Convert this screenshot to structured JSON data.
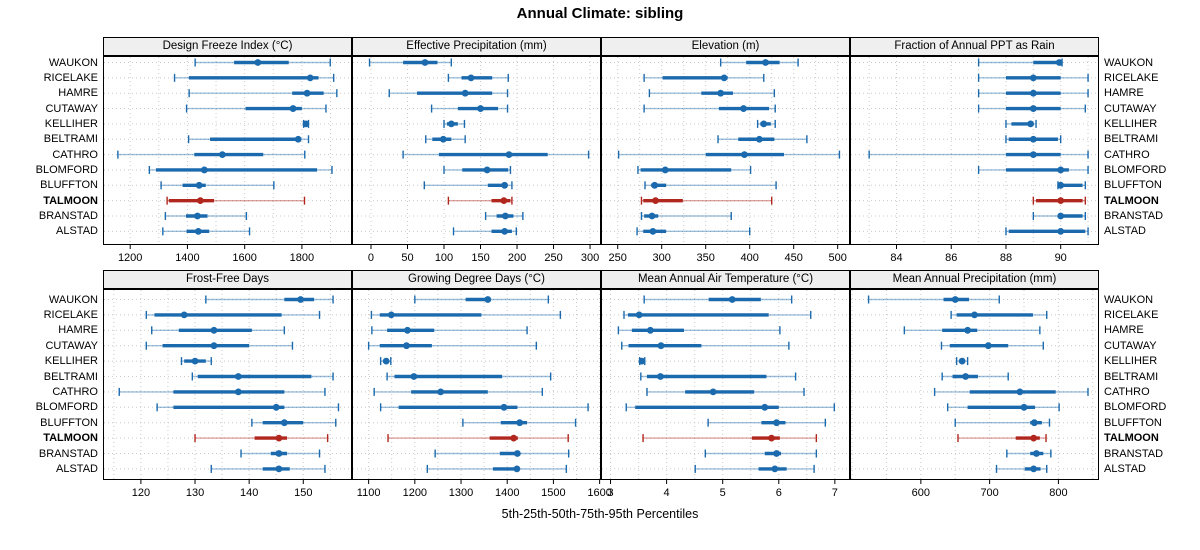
{
  "title": "Annual Climate: sibling",
  "caption": "5th-25th-50th-75th-95th Percentiles",
  "stations": [
    "WAUKON",
    "RICELAKE",
    "HAMRE",
    "CUTAWAY",
    "KELLIHER",
    "BELTRAMI",
    "CATHRO",
    "BLOMFORD",
    "BLUFFTON",
    "TALMOON",
    "BRANSTAD",
    "ALSTAD"
  ],
  "highlight_station": "TALMOON",
  "percentile_labels": [
    "5th",
    "25th",
    "50th",
    "75th",
    "95th"
  ],
  "colors": {
    "series_main": "#1b6aae",
    "series_light": "rgba(27,106,174,0.42)",
    "highlight_main": "#b1261d",
    "highlight_light": "rgba(177,38,29,0.42)",
    "strip_bg": "#efefef",
    "grid": "#c9c9c9",
    "border": "#000000"
  },
  "chart_data": {
    "type": "dotplot",
    "layout": "2 rows x 4 columns lattice, shared station y-axis, TALMOON highlighted",
    "legend": "each row shows 5th-25th-50th-75th-95th percentile whisker (thin 5-95 with end caps, thick 25-75, dot = median)",
    "panels": [
      {
        "title": "Design Freeze Index (°C)",
        "xlim": [
          1105,
          1975
        ],
        "ticks": [
          1200,
          1400,
          1600,
          1800
        ],
        "grid_step": 100,
        "values": {
          "WAUKON": [
            1427,
            1563,
            1646,
            1754,
            1899
          ],
          "RICELAKE": [
            1355,
            1405,
            1829,
            1858,
            1911
          ],
          "HAMRE": [
            1406,
            1766,
            1818,
            1876,
            1922
          ],
          "CUTAWAY": [
            1397,
            1603,
            1769,
            1800,
            1884
          ],
          "KELLIHER": [
            1806,
            1810,
            1814,
            1818,
            1823
          ],
          "BELTRAMI": [
            1404,
            1479,
            1787,
            1792,
            1823
          ],
          "CATHRO": [
            1157,
            1424,
            1522,
            1665,
            1810
          ],
          "BLOMFORD": [
            1267,
            1290,
            1459,
            1853,
            1905
          ],
          "BLUFFTON": [
            1308,
            1383,
            1441,
            1464,
            1702
          ],
          "TALMOON": [
            1329,
            1335,
            1445,
            1493,
            1809
          ],
          "BRANSTAD": [
            1323,
            1395,
            1435,
            1470,
            1606
          ],
          "ALSTAD": [
            1314,
            1397,
            1438,
            1476,
            1617
          ]
        }
      },
      {
        "title": "Effective Precipitation (mm)",
        "xlim": [
          -26,
          315
        ],
        "ticks": [
          0,
          50,
          100,
          150,
          200,
          250,
          300
        ],
        "grid_step": 50,
        "values": {
          "WAUKON": [
            -2,
            44,
            74,
            91,
            110
          ],
          "RICELAKE": [
            106,
            124,
            137,
            166,
            188
          ],
          "HAMRE": [
            25,
            63,
            129,
            166,
            187
          ],
          "CUTAWAY": [
            83,
            119,
            150,
            174,
            187
          ],
          "KELLIHER": [
            100,
            104,
            110,
            119,
            128
          ],
          "BELTRAMI": [
            75,
            84,
            99,
            110,
            129
          ],
          "CATHRO": [
            44,
            93,
            189,
            242,
            298
          ],
          "BLOMFORD": [
            100,
            125,
            159,
            188,
            191
          ],
          "BLUFFTON": [
            73,
            160,
            183,
            187,
            193
          ],
          "TALMOON": [
            106,
            165,
            182,
            191,
            193
          ],
          "BRANSTAD": [
            157,
            172,
            184,
            195,
            208
          ],
          "ALSTAD": [
            113,
            165,
            183,
            193,
            199
          ]
        }
      },
      {
        "title": "Elevation (m)",
        "xlim": [
          231,
          514
        ],
        "ticks": [
          250,
          300,
          350,
          400,
          450,
          500
        ],
        "grid_step": 25,
        "values": {
          "WAUKON": [
            367,
            396,
            418,
            434,
            455
          ],
          "RICELAKE": [
            280,
            301,
            371,
            375,
            416
          ],
          "HAMRE": [
            286,
            345,
            367,
            381,
            428
          ],
          "CUTAWAY": [
            280,
            365,
            393,
            422,
            429
          ],
          "KELLIHER": [
            409,
            412,
            416,
            424,
            429
          ],
          "BELTRAMI": [
            364,
            387,
            411,
            428,
            465
          ],
          "CATHRO": [
            251,
            350,
            394,
            439,
            502
          ],
          "BLOMFORD": [
            273,
            276,
            304,
            379,
            401
          ],
          "BLUFFTON": [
            281,
            288,
            292,
            305,
            430
          ],
          "TALMOON": [
            277,
            279,
            293,
            324,
            425
          ],
          "BRANSTAD": [
            277,
            280,
            289,
            296,
            379
          ],
          "ALSTAD": [
            272,
            279,
            290,
            305,
            400
          ]
        }
      },
      {
        "title": "Fraction of Annual PPT as Rain",
        "xlim": [
          82.3,
          91.4
        ],
        "ticks": [
          84,
          86,
          88,
          90
        ],
        "grid_step": 1,
        "values": {
          "WAUKON": [
            87,
            89,
            89.95,
            90,
            90.05
          ],
          "RICELAKE": [
            87,
            88,
            89,
            90,
            91
          ],
          "HAMRE": [
            87,
            88,
            89,
            90,
            91
          ],
          "CUTAWAY": [
            87,
            88,
            89,
            90,
            90.9
          ],
          "KELLIHER": [
            88,
            88.2,
            88.9,
            89,
            89.1
          ],
          "BELTRAMI": [
            88,
            88.1,
            89,
            89.9,
            90
          ],
          "CATHRO": [
            83,
            88,
            89,
            90,
            91
          ],
          "BLOMFORD": [
            87,
            88,
            90,
            90.3,
            91
          ],
          "BLUFFTON": [
            89.9,
            89.95,
            90,
            90.8,
            90.9
          ],
          "TALMOON": [
            89,
            89.1,
            90,
            90.8,
            90.9
          ],
          "BRANSTAD": [
            89,
            89.9,
            90,
            90.8,
            90.9
          ],
          "ALSTAD": [
            88,
            88.1,
            90,
            90.9,
            91
          ]
        }
      },
      {
        "title": "Frost-Free Days",
        "xlim": [
          113,
          159
        ],
        "ticks": [
          120,
          130,
          140,
          150
        ],
        "grid_step": 5,
        "values": {
          "WAUKON": [
            132,
            146.5,
            149.5,
            152,
            155.5
          ],
          "RICELAKE": [
            121,
            122.5,
            128,
            146,
            153
          ],
          "HAMRE": [
            122,
            127,
            133.5,
            140.5,
            146.5
          ],
          "CUTAWAY": [
            121,
            124,
            133.5,
            140,
            148
          ],
          "KELLIHER": [
            127.5,
            128,
            130,
            132,
            133
          ],
          "BELTRAMI": [
            129.5,
            130.5,
            138,
            151.5,
            155.5
          ],
          "CATHRO": [
            116,
            126,
            138,
            146.5,
            154
          ],
          "BLOMFORD": [
            123,
            126,
            145,
            146.5,
            156.5
          ],
          "BLUFFTON": [
            140.5,
            142.5,
            146.5,
            150,
            156
          ],
          "TALMOON": [
            130,
            141,
            145.5,
            147,
            154.5
          ],
          "BRANSTAD": [
            138.5,
            144,
            145.5,
            147,
            153
          ],
          "ALSTAD": [
            133,
            142.5,
            145.5,
            147.5,
            154
          ]
        }
      },
      {
        "title": "Growing Degree Days (°C)",
        "xlim": [
          1064,
          1603
        ],
        "ticks": [
          1100,
          1200,
          1300,
          1400,
          1500,
          1600
        ],
        "grid_step": 50,
        "values": {
          "WAUKON": [
            1200,
            1310,
            1358,
            1363,
            1489
          ],
          "RICELAKE": [
            1106,
            1124,
            1149,
            1344,
            1515
          ],
          "HAMRE": [
            1107,
            1140,
            1184,
            1242,
            1443
          ],
          "CUTAWAY": [
            1100,
            1124,
            1182,
            1237,
            1463
          ],
          "KELLIHER": [
            1126,
            1132,
            1138,
            1144,
            1148
          ],
          "BELTRAMI": [
            1140,
            1156,
            1198,
            1389,
            1494
          ],
          "CATHRO": [
            1112,
            1192,
            1256,
            1358,
            1476
          ],
          "BLOMFORD": [
            1126,
            1165,
            1393,
            1422,
            1575
          ],
          "BLUFFTON": [
            1304,
            1386,
            1427,
            1443,
            1548
          ],
          "TALMOON": [
            1142,
            1362,
            1414,
            1423,
            1532
          ],
          "BRANSTAD": [
            1244,
            1384,
            1422,
            1427,
            1533
          ],
          "ALSTAD": [
            1227,
            1369,
            1421,
            1425,
            1528
          ]
        }
      },
      {
        "title": "Mean Annual Air Temperature (°C)",
        "xlim": [
          2.83,
          7.27
        ],
        "ticks": [
          3,
          4,
          5,
          6,
          7
        ],
        "grid_step": 0.5,
        "values": {
          "WAUKON": [
            3.6,
            4.75,
            5.17,
            5.68,
            6.23
          ],
          "RICELAKE": [
            3.24,
            3.31,
            3.51,
            5.82,
            6.57
          ],
          "HAMRE": [
            3.14,
            3.38,
            3.71,
            4.31,
            6.02
          ],
          "CUTAWAY": [
            3.2,
            3.32,
            3.9,
            4.62,
            6.18
          ],
          "KELLIHER": [
            3.52,
            3.54,
            3.56,
            3.59,
            3.61
          ],
          "BELTRAMI": [
            3.54,
            3.65,
            3.89,
            5.78,
            6.3
          ],
          "CATHRO": [
            3.65,
            4.33,
            4.83,
            5.56,
            6.45
          ],
          "BLOMFORD": [
            3.28,
            3.44,
            5.75,
            6.0,
            6.99
          ],
          "BLUFFTON": [
            4.74,
            5.69,
            5.96,
            6.12,
            6.83
          ],
          "TALMOON": [
            3.58,
            5.52,
            5.87,
            6.02,
            6.67
          ],
          "BRANSTAD": [
            4.69,
            5.75,
            5.96,
            6.04,
            6.67
          ],
          "ALSTAD": [
            4.51,
            5.64,
            5.93,
            6.14,
            6.63
          ]
        }
      },
      {
        "title": "Mean Annual Precipitation (mm)",
        "xlim": [
          497,
          859
        ],
        "ticks": [
          600,
          700,
          800
        ],
        "grid_step": 50,
        "values": {
          "WAUKON": [
            524,
            633,
            650,
            670,
            714
          ],
          "RICELAKE": [
            644,
            652,
            678,
            763,
            783
          ],
          "HAMRE": [
            576,
            631,
            668,
            682,
            773
          ],
          "CUTAWAY": [
            630,
            642,
            698,
            727,
            778
          ],
          "KELLIHER": [
            652,
            656,
            660,
            664,
            668
          ],
          "BELTRAMI": [
            631,
            646,
            665,
            683,
            727
          ],
          "CATHRO": [
            620,
            671,
            744,
            796,
            843
          ],
          "BLOMFORD": [
            639,
            668,
            750,
            766,
            801
          ],
          "BLUFFTON": [
            650,
            759,
            765,
            776,
            787
          ],
          "TALMOON": [
            654,
            738,
            764,
            773,
            782
          ],
          "BRANSTAD": [
            725,
            759,
            768,
            778,
            789
          ],
          "ALSTAD": [
            710,
            751,
            764,
            774,
            783
          ]
        }
      }
    ]
  }
}
